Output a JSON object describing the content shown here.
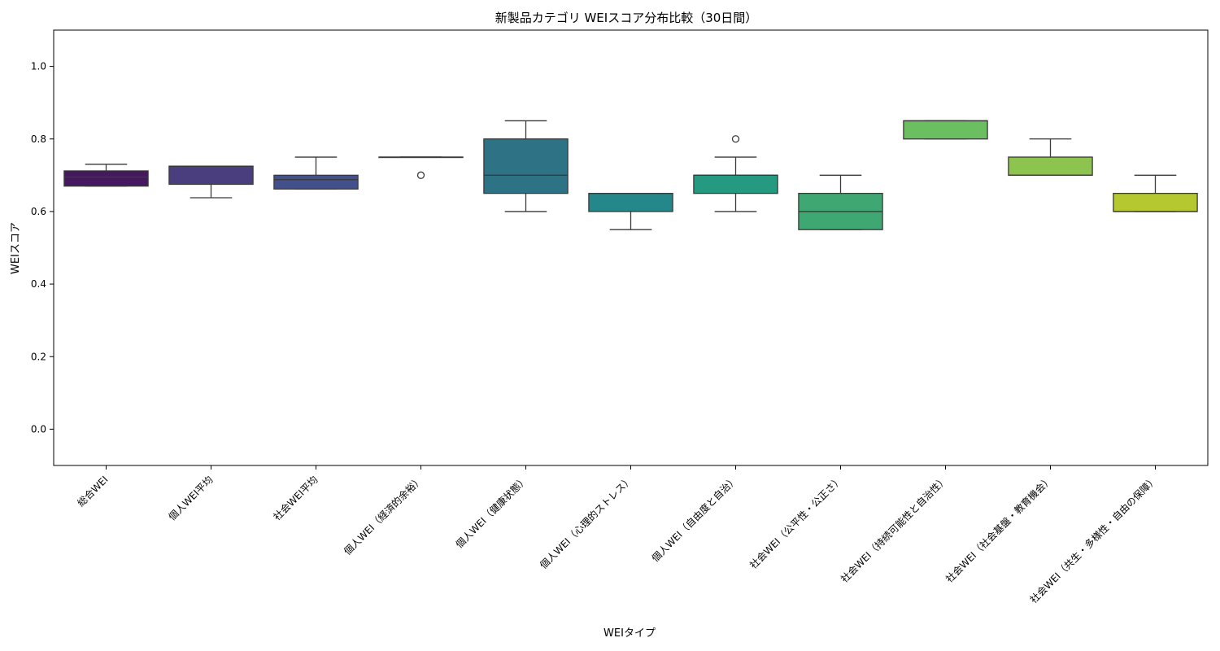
{
  "chart_data": {
    "type": "box",
    "title": "新製品カテゴリ WEIスコア分布比較（30日間）",
    "xlabel": "WEIタイプ",
    "ylabel": "WEIスコア",
    "ylim": [
      -0.1,
      1.1
    ],
    "yticks": [
      "0.0",
      "0.2",
      "0.4",
      "0.6",
      "0.8",
      "1.0"
    ],
    "grid": false,
    "palette": "viridis",
    "categories": [
      "総合WEI",
      "個人WEI平均",
      "社会WEI平均",
      "個人WEI（経済的余裕）",
      "個人WEI（健康状態）",
      "個人WEI（心理的ストレス）",
      "個人WEI（自由度と自治）",
      "社会WEI（公平性・公正さ）",
      "社会WEI（持続可能性と自治性）",
      "社会WEI（社会基盤・教育機会）",
      "社会WEI（共生・多様性・自由の保障）"
    ],
    "boxes": [
      {
        "whisker_low": 0.67,
        "q1": 0.67,
        "median": 0.695,
        "q3": 0.712,
        "whisker_high": 0.73,
        "outliers": [],
        "color": "#46185f"
      },
      {
        "whisker_low": 0.638,
        "q1": 0.675,
        "median": 0.725,
        "q3": 0.725,
        "whisker_high": 0.725,
        "outliers": [],
        "color": "#4a3e7e"
      },
      {
        "whisker_low": 0.662,
        "q1": 0.662,
        "median": 0.688,
        "q3": 0.7,
        "whisker_high": 0.75,
        "outliers": [],
        "color": "#42518c"
      },
      {
        "whisker_low": 0.75,
        "q1": 0.75,
        "median": 0.75,
        "q3": 0.75,
        "whisker_high": 0.75,
        "outliers": [
          0.7
        ],
        "color": "#38648d"
      },
      {
        "whisker_low": 0.6,
        "q1": 0.65,
        "median": 0.7,
        "q3": 0.8,
        "whisker_high": 0.85,
        "outliers": [],
        "color": "#2e7285"
      },
      {
        "whisker_low": 0.55,
        "q1": 0.6,
        "median": 0.65,
        "q3": 0.65,
        "whisker_high": 0.65,
        "outliers": [],
        "color": "#24888a"
      },
      {
        "whisker_low": 0.6,
        "q1": 0.65,
        "median": 0.7,
        "q3": 0.7,
        "whisker_high": 0.75,
        "outliers": [
          0.8
        ],
        "color": "#259a81"
      },
      {
        "whisker_low": 0.55,
        "q1": 0.55,
        "median": 0.6,
        "q3": 0.65,
        "whisker_high": 0.7,
        "outliers": [],
        "color": "#3fa872"
      },
      {
        "whisker_low": 0.8,
        "q1": 0.8,
        "median": 0.85,
        "q3": 0.85,
        "whisker_high": 0.85,
        "outliers": [],
        "color": "#6cbf60"
      },
      {
        "whisker_low": 0.7,
        "q1": 0.7,
        "median": 0.7,
        "q3": 0.75,
        "whisker_high": 0.8,
        "outliers": [],
        "color": "#8dc34f"
      },
      {
        "whisker_low": 0.6,
        "q1": 0.6,
        "median": 0.6,
        "q3": 0.65,
        "whisker_high": 0.7,
        "outliers": [],
        "color": "#b5c82f"
      }
    ]
  }
}
